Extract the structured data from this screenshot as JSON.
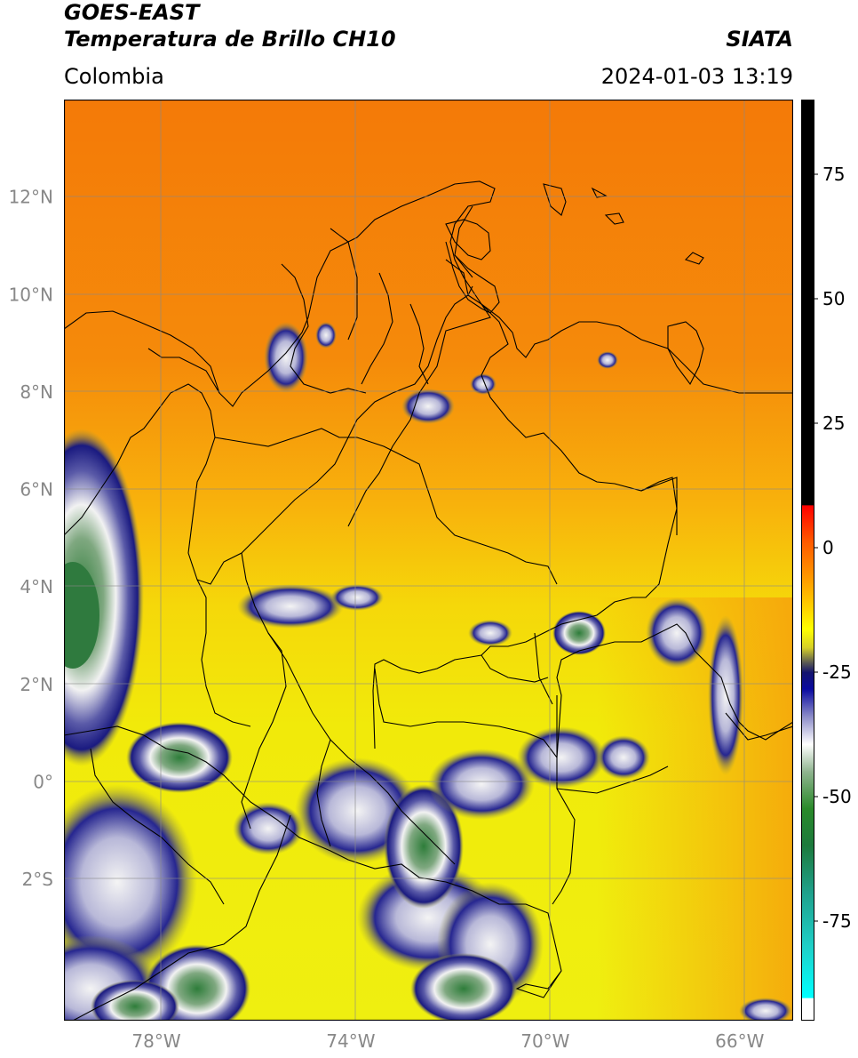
{
  "header": {
    "satellite": "GOES-EAST",
    "product": "Temperatura de Brillo CH10",
    "region": "Colombia",
    "agency": "SIATA",
    "timestamp": "2024-01-03 13:19"
  },
  "map": {
    "lat_labels": [
      "12°N",
      "10°N",
      "8°N",
      "6°N",
      "4°N",
      "2°N",
      "0°",
      "2°S"
    ],
    "lon_labels": [
      "78°W",
      "74°W",
      "70°W",
      "66°W"
    ],
    "lon_range": [
      -79.9,
      -64.9
    ],
    "lat_range": [
      -4.9,
      14.0
    ]
  },
  "colorbar": {
    "ticks": [
      "75",
      "50",
      "25",
      "0",
      "-25",
      "-50",
      "-75"
    ],
    "range": [
      -95,
      90
    ]
  }
}
